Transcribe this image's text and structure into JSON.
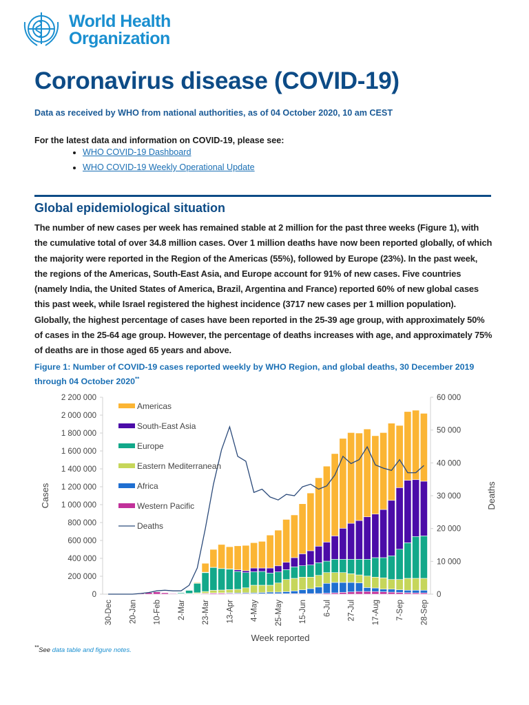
{
  "header": {
    "org_line1": "World Health",
    "org_line2": "Organization",
    "logo_icon": "who-emblem-icon"
  },
  "title": "Coronavirus disease (COVID-19)",
  "subtitle": "Data as received by WHO from national authorities, as of 04 October 2020, 10 am CEST",
  "latest_intro": "For the latest data and information on COVID-19, please see:",
  "links": [
    "WHO COVID-19 Dashboard",
    "WHO COVID-19 Weekly Operational Update"
  ],
  "section_title": "Global epidemiological situation",
  "paragraph": "The number of new cases per week has remained stable at 2 million for the past three weeks (Figure 1), with the cumulative total of  over 34.8 million cases. Over 1 million deaths have now been reported globally, of which the majority were reported in the Region of the Americas (55%), followed by Europe (23%).  In the past week, the regions of the Americas, South-East Asia, and Europe account for 91% of new cases. Five countries (namely India, the United States of America, Brazil, Argentina and France) reported 60% of new global cases this past week, while Israel registered the highest incidence (3717 new cases per 1 million population). Globally, the highest percentage of cases have been reported in the 25-39 age group, with approximately 50% of cases in the 25-64 age group. However, the percentage of deaths increases with age, and approximately 75% of deaths are in those aged 65 years and above.",
  "figure_caption": "Figure 1: Number of COVID-19 cases reported weekly by WHO Region, and global deaths, 30 December 2019 through 04 October 2020",
  "figure_caption_mark": "**",
  "footnote": {
    "mark": "**",
    "prefix": "See ",
    "link": "data table and figure notes."
  },
  "chart_data": {
    "type": "bar",
    "stacked": true,
    "xlabel": "Week reported",
    "ylabel": "Cases",
    "y2label": "Deaths",
    "ylim": [
      0,
      2200000
    ],
    "y2lim": [
      0,
      60000
    ],
    "yticks": [
      "0",
      "200 000",
      "400 000",
      "600 000",
      "800 000",
      "1 000 000",
      "1 200 000",
      "1 400 000",
      "1 600 000",
      "1 800 000",
      "2 000 000",
      "2 200 000"
    ],
    "y2ticks": [
      "0",
      "10 000",
      "20 000",
      "30 000",
      "40 000",
      "50 000",
      "60 000"
    ],
    "xticks": [
      "30-Dec",
      "20-Jan",
      "10-Feb",
      "2-Mar",
      "23-Mar",
      "13-Apr",
      "4-May",
      "25-May",
      "15-Jun",
      "6-Jul",
      "27-Jul",
      "17-Aug",
      "7-Sep",
      "28-Sep"
    ],
    "categories": [
      "30-Dec",
      "6-Jan",
      "13-Jan",
      "20-Jan",
      "27-Jan",
      "3-Feb",
      "10-Feb",
      "17-Feb",
      "24-Feb",
      "2-Mar",
      "9-Mar",
      "16-Mar",
      "23-Mar",
      "30-Mar",
      "6-Apr",
      "13-Apr",
      "20-Apr",
      "27-Apr",
      "4-May",
      "11-May",
      "18-May",
      "25-May",
      "1-Jun",
      "8-Jun",
      "15-Jun",
      "22-Jun",
      "29-Jun",
      "6-Jul",
      "13-Jul",
      "20-Jul",
      "27-Jul",
      "3-Aug",
      "10-Aug",
      "17-Aug",
      "24-Aug",
      "31-Aug",
      "7-Sep",
      "14-Sep",
      "21-Sep",
      "28-Sep"
    ],
    "legend_position": "top-left",
    "grid": false,
    "series": [
      {
        "name": "Western Pacific",
        "color": "#c1319a",
        "values": [
          0,
          0,
          0,
          3000,
          10000,
          18000,
          25000,
          15000,
          8000,
          3000,
          3000,
          5000,
          8000,
          10000,
          10000,
          8000,
          6000,
          6000,
          5000,
          5000,
          5000,
          5000,
          5000,
          6000,
          6000,
          6000,
          7000,
          10000,
          15000,
          20000,
          25000,
          30000,
          30000,
          29000,
          26000,
          22000,
          19000,
          16000,
          14000,
          14000
        ]
      },
      {
        "name": "Africa",
        "color": "#1f6fd1",
        "values": [
          0,
          0,
          0,
          0,
          0,
          0,
          0,
          0,
          0,
          0,
          0,
          1000,
          2000,
          3000,
          4000,
          8000,
          8000,
          10000,
          10000,
          13000,
          18000,
          18000,
          23000,
          30000,
          43000,
          56000,
          72000,
          111000,
          116000,
          111000,
          106000,
          96000,
          44000,
          40000,
          30000,
          34000,
          30000,
          28000,
          30000,
          30000
        ]
      },
      {
        "name": "Eastern Mediterranean",
        "color": "#c6d65a",
        "values": [
          0,
          0,
          0,
          0,
          0,
          0,
          0,
          0,
          1000,
          2000,
          5000,
          10000,
          20000,
          30000,
          32000,
          35000,
          40000,
          55000,
          85000,
          82000,
          77000,
          102000,
          136000,
          141000,
          141000,
          128000,
          131000,
          120000,
          110000,
          110000,
          97000,
          89000,
          128000,
          121000,
          126000,
          108000,
          115000,
          133000,
          133000,
          133000
        ]
      },
      {
        "name": "Europe",
        "color": "#12a88a",
        "values": [
          0,
          0,
          0,
          0,
          0,
          0,
          0,
          0,
          2000,
          10000,
          35000,
          105000,
          210000,
          255000,
          240000,
          228000,
          200000,
          170000,
          150000,
          154000,
          136000,
          124000,
          110000,
          128000,
          128000,
          136000,
          141000,
          128000,
          149000,
          149000,
          162000,
          175000,
          188000,
          218000,
          226000,
          264000,
          338000,
          397000,
          467000,
          474000
        ]
      },
      {
        "name": "South-East Asia",
        "color": "#4b0ca8",
        "values": [
          0,
          0,
          0,
          0,
          0,
          0,
          0,
          0,
          0,
          0,
          0,
          1000,
          5000,
          2000,
          1000,
          3000,
          18000,
          21000,
          42000,
          38000,
          56000,
          68000,
          82000,
          103000,
          133000,
          159000,
          185000,
          213000,
          261000,
          346000,
          402000,
          433000,
          474000,
          487000,
          538000,
          620000,
          688000,
          698000,
          635000,
          611000
        ]
      },
      {
        "name": "Americas",
        "color": "#fbb534",
        "values": [
          0,
          0,
          0,
          0,
          0,
          0,
          0,
          0,
          0,
          0,
          2000,
          8000,
          100000,
          200000,
          268000,
          248000,
          268000,
          283000,
          283000,
          298000,
          368000,
          398000,
          479000,
          477000,
          559000,
          645000,
          764000,
          848000,
          919000,
          1004000,
          1013000,
          977000,
          981000,
          875000,
          859000,
          862000,
          695000,
          768000,
          776000,
          758000
        ]
      }
    ],
    "line_series": {
      "name": "Deaths",
      "color": "#2b4a7a",
      "axis": "right",
      "values": [
        0,
        0,
        0,
        0,
        200,
        500,
        1000,
        1200,
        1000,
        1000,
        2700,
        8000,
        20000,
        33500,
        44000,
        51000,
        42000,
        40500,
        31000,
        32000,
        29600,
        28700,
        30400,
        30000,
        32700,
        33500,
        32000,
        33000,
        36300,
        42000,
        39800,
        41000,
        44900,
        39400,
        38400,
        37700,
        41000,
        37000,
        37000,
        39200
      ]
    },
    "legend_order": [
      "Americas",
      "South-East Asia",
      "Europe",
      "Eastern Mediterranean",
      "Africa",
      "Western Pacific",
      "Deaths"
    ]
  }
}
